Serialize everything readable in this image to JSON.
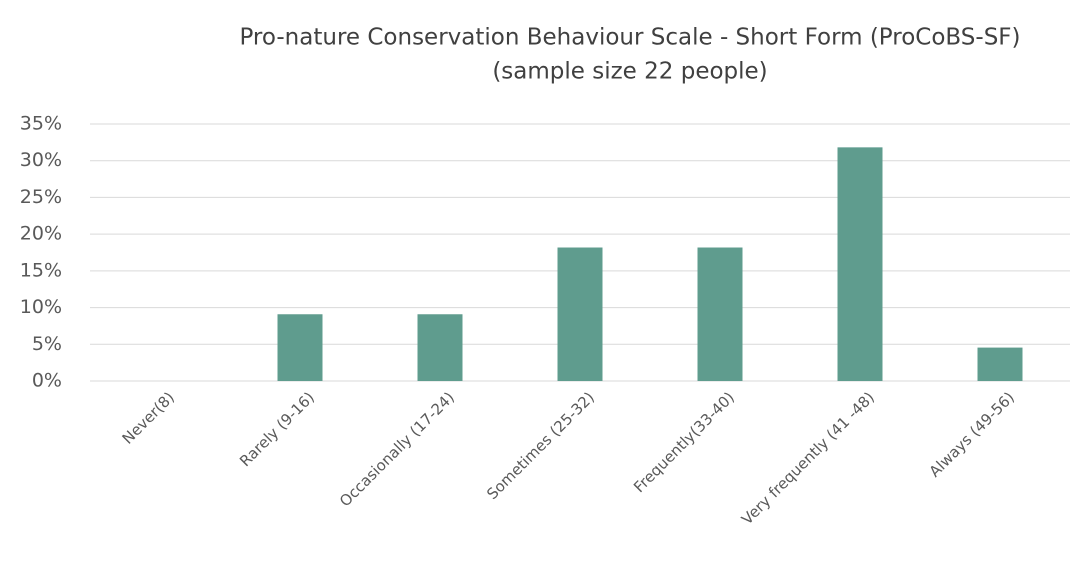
{
  "chart_data": {
    "type": "bar",
    "title": "Pro-nature Conservation Behaviour Scale - Short Form (ProCoBS-SF)",
    "subtitle": "(sample size 22 people)",
    "categories": [
      "Never(8)",
      "Rarely (9-16)",
      "Occasionally (17-24)",
      "Sometimes (25-32)",
      "Frequently(33-40)",
      "Very frequently (41 -48)",
      "Always (49-56)"
    ],
    "values": [
      0,
      9.09,
      9.09,
      18.18,
      18.18,
      31.82,
      4.55
    ],
    "color": "#5f9c8e",
    "ylim": [
      0,
      35
    ],
    "yticks": [
      {
        "value": 0,
        "label": "0%"
      },
      {
        "value": 5,
        "label": "5%"
      },
      {
        "value": 10,
        "label": "10%"
      },
      {
        "value": 15,
        "label": "15%"
      },
      {
        "value": 20,
        "label": "20%"
      },
      {
        "value": 25,
        "label": "25%"
      },
      {
        "value": 30,
        "label": "30%"
      },
      {
        "value": 35,
        "label": "35%"
      }
    ],
    "grid": true
  }
}
